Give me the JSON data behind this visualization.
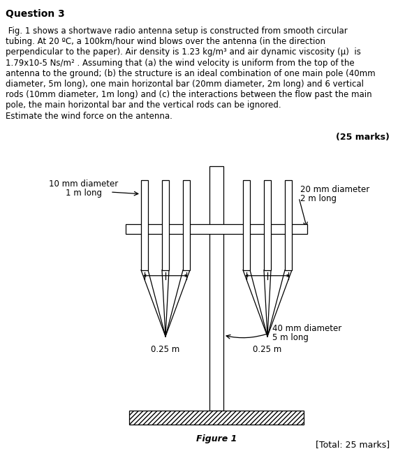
{
  "title": "Question 3",
  "paragraph_lines": [
    " Fig. 1 shows a shortwave radio antenna setup is constructed from smooth circular",
    "tubing. At 20 ºC, a 100km/hour wind blows over the antenna (in the direction",
    "perpendicular to the paper). Air density is 1.23 kg/m³ and air dynamic viscosity (μ)  is",
    "1.79x10-5 Ns/m² . Assuming that (a) the wind velocity is uniform from the top of the",
    "antenna to the ground; (b) the structure is an ideal combination of one main pole (40mm",
    "diameter, 5m long), one main horizontal bar (20mm diameter, 2m long) and 6 vertical",
    "rods (10mm diameter, 1m long) and (c) the interactions between the flow past the main",
    "pole, the main horizontal bar and the vertical rods can be ignored.",
    "Estimate the wind force on the antenna."
  ],
  "marks": "(25 marks)",
  "total_marks": "[Total: 25 marks]",
  "figure_label": "Figure 1",
  "label_left_line1": "10 mm diameter",
  "label_left_line2": "1 m long",
  "label_right_line1": "20 mm diameter",
  "label_right_line2": "2 m long",
  "label_bottom_line1": "40 mm diameter",
  "label_bottom_line2": "5 m long",
  "dim_left": "0.25 m",
  "dim_right": "0.25 m",
  "bg_color": "#ffffff",
  "line_color": "#000000"
}
